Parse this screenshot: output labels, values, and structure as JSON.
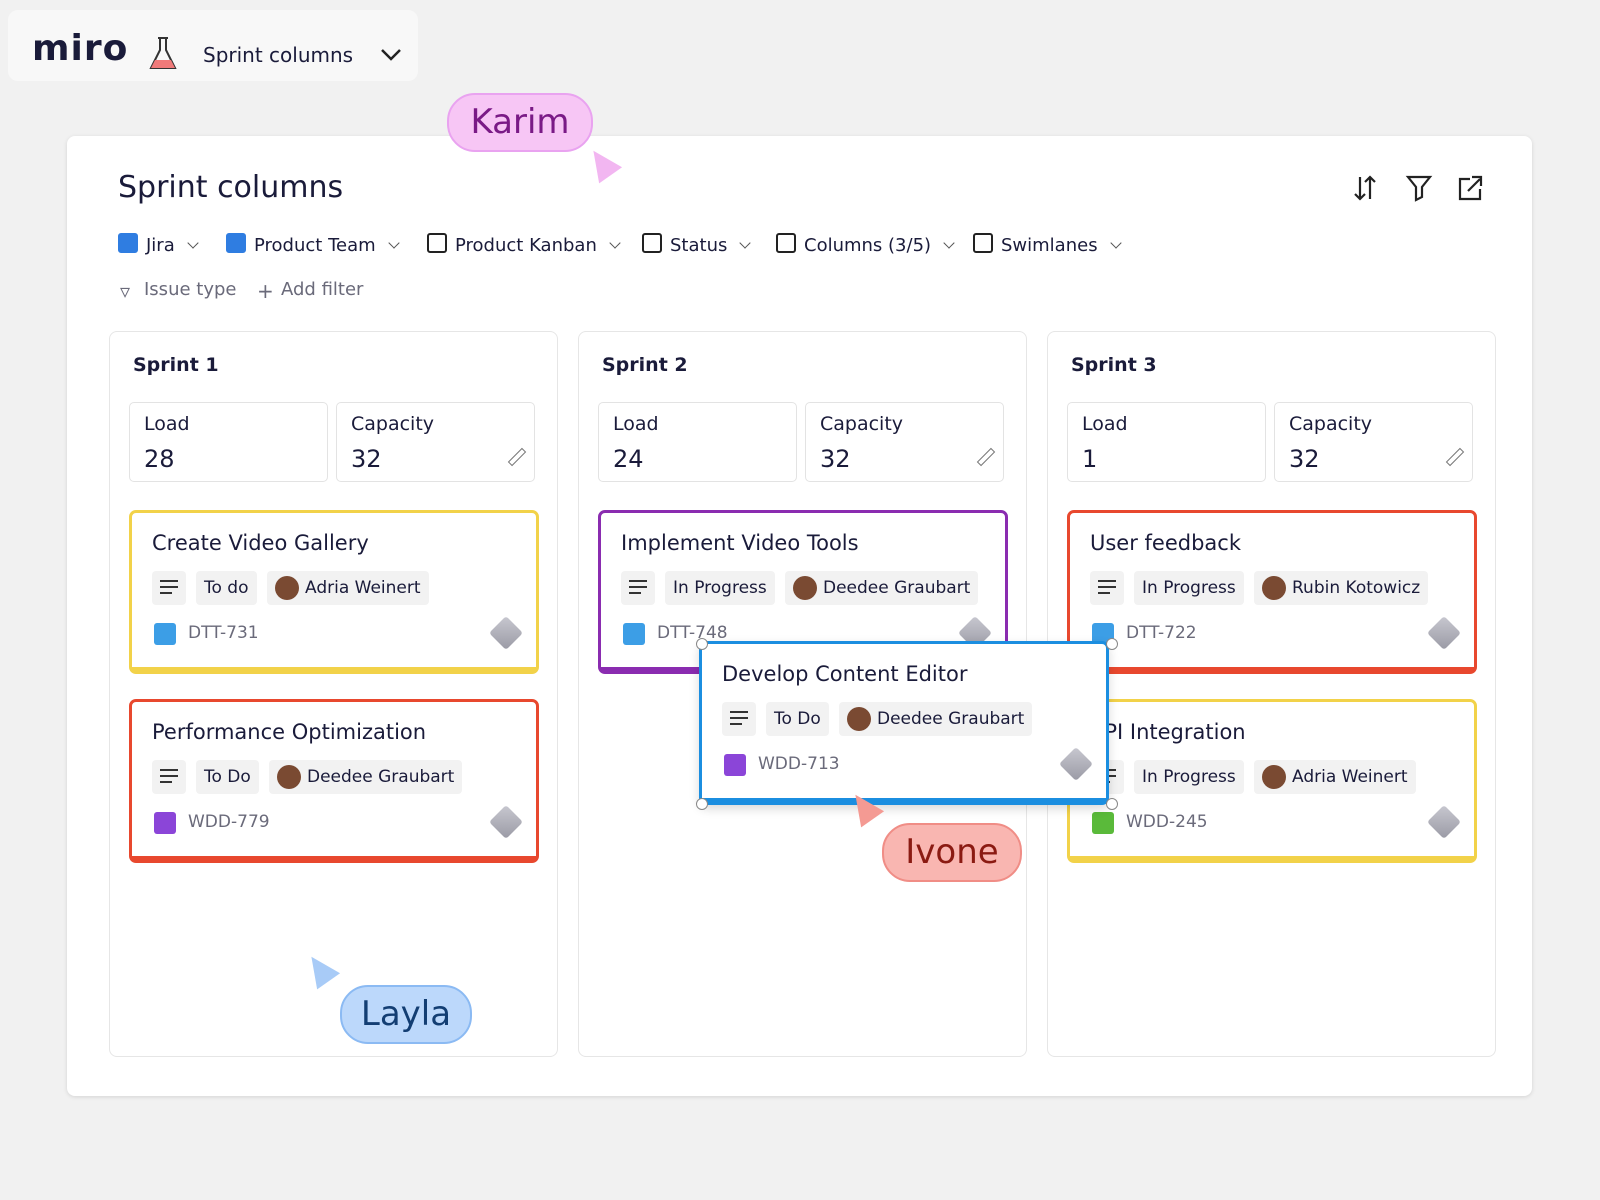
{
  "header": {
    "logo": "miro",
    "board_name": "Sprint columns"
  },
  "panel": {
    "title": "Sprint columns",
    "toolbar": [
      "Jira",
      "Product Team",
      "Product Kanban",
      "Status",
      "Columns (3/5)",
      "Swimlanes"
    ],
    "filters": [
      "Issue type",
      "Add filter"
    ],
    "sprints": [
      {
        "name": "Sprint 1",
        "load_label": "Load",
        "load": 28,
        "capacity_label": "Capacity",
        "capacity": 32,
        "cards": [
          {
            "title": "Create Video Gallery",
            "status": "To do",
            "assignee": "Adria Weinert",
            "key": "DTT-731",
            "color": "#f2d249",
            "icon": "task"
          },
          {
            "title": "Performance Optimization",
            "status": "To Do",
            "assignee": "Deedee Graubart",
            "key": "WDD-779",
            "color": "#e8482e",
            "icon": "epic"
          }
        ]
      },
      {
        "name": "Sprint 2",
        "load_label": "Load",
        "load": 24,
        "capacity_label": "Capacity",
        "capacity": 32,
        "cards": [
          {
            "title": "Implement Video Tools",
            "status": "In Progress",
            "assignee": "Deedee Graubart",
            "key": "DTT-748",
            "color": "#8a2cb0",
            "icon": "task"
          }
        ]
      },
      {
        "name": "Sprint 3",
        "load_label": "Load",
        "load": 1,
        "capacity_label": "Capacity",
        "capacity": 32,
        "cards": [
          {
            "title": "User feedback",
            "status": "In Progress",
            "assignee": "Rubin Kotowicz",
            "key": "DTT-722",
            "color": "#e8482e",
            "icon": "task"
          },
          {
            "title": "API Integration",
            "status": "In Progress",
            "assignee": "Adria Weinert",
            "key": "WDD-245",
            "color": "#f2d249",
            "icon": "story"
          }
        ]
      }
    ],
    "dragged_card": {
      "title": "Develop Content Editor",
      "status": "To Do",
      "assignee": "Deedee Graubart",
      "key": "WDD-713",
      "color": "#1b8ee0",
      "icon": "epic"
    }
  },
  "cursors": [
    {
      "name": "Karim"
    },
    {
      "name": "Ivone"
    },
    {
      "name": "Layla"
    }
  ]
}
